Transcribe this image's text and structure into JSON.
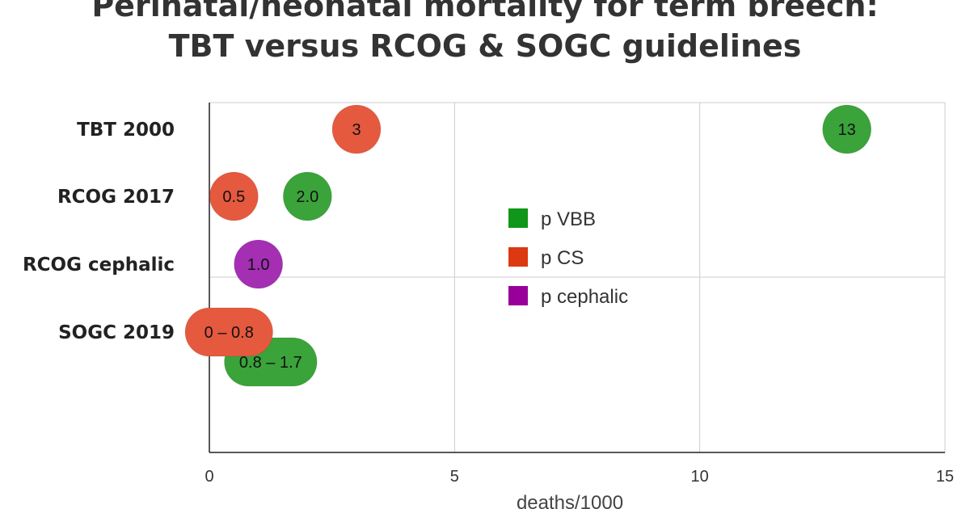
{
  "chart_data": {
    "type": "scatter",
    "title_lines": [
      "Perinatal/neonatal mortality for term breech:",
      "TBT versus RCOG & SOGC guidelines"
    ],
    "xlabel": "deaths/1000",
    "xlim": [
      0,
      15
    ],
    "x_ticks": [
      0,
      5,
      10,
      15
    ],
    "categories": [
      "TBT 2000",
      "RCOG 2017",
      "RCOG cephalic",
      "SOGC 2019"
    ],
    "grid": true,
    "legend_position": "center",
    "legend": [
      {
        "name": "p VBB",
        "color": "#109618"
      },
      {
        "name": "p CS",
        "color": "#dc3912"
      },
      {
        "name": "p cephalic",
        "color": "#990099"
      }
    ],
    "series": [
      {
        "name": "p VBB",
        "color": "#3aa33a",
        "points": [
          {
            "category": "TBT 2000",
            "x": 13,
            "label": "13"
          },
          {
            "category": "RCOG 2017",
            "x": 2.0,
            "label": "2.0"
          },
          {
            "category": "SOGC 2019",
            "x_range": [
              0.8,
              1.7
            ],
            "label": "0.8 – 1.7"
          }
        ]
      },
      {
        "name": "p CS",
        "color": "#e5593f",
        "points": [
          {
            "category": "TBT 2000",
            "x": 3,
            "label": "3"
          },
          {
            "category": "RCOG 2017",
            "x": 0.5,
            "label": "0.5"
          },
          {
            "category": "SOGC 2019",
            "x_range": [
              0,
              0.8
            ],
            "label": "0 – 0.8"
          }
        ]
      },
      {
        "name": "p cephalic",
        "color": "#a42fb3",
        "points": [
          {
            "category": "RCOG cephalic",
            "x": 1.0,
            "label": "1.0"
          }
        ]
      }
    ]
  }
}
